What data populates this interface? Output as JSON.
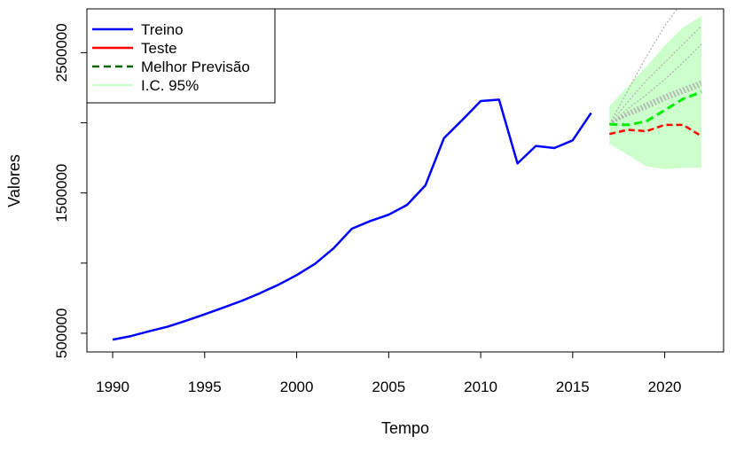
{
  "chart_data": {
    "type": "line",
    "xlabel": "Tempo",
    "ylabel": "Valores",
    "xlim": [
      1988.6,
      2023.2
    ],
    "ylim": [
      367000,
      2812000
    ],
    "x_ticks": [
      1990,
      1995,
      2000,
      2005,
      2010,
      2015,
      2020
    ],
    "x_tick_labels": [
      "1990",
      "1995",
      "2000",
      "2005",
      "2010",
      "2015",
      "2020"
    ],
    "y_ticks": [
      500000,
      1000000,
      1500000,
      2000000,
      2500000
    ],
    "y_tick_labels": [
      "500000",
      "",
      "1500000",
      "",
      "2500000"
    ],
    "legend_position": "top-left",
    "legend": [
      {
        "label": "Treino",
        "color": "#0000ff",
        "style": "solid"
      },
      {
        "label": "Teste",
        "color": "#ff0000",
        "style": "solid"
      },
      {
        "label": "Melhor Previsão",
        "color": "#006400",
        "style": "dashed"
      },
      {
        "label": "I.C. 95%",
        "color": "#ccffcc",
        "style": "solid"
      }
    ],
    "ci": {
      "color": "#ccffcc",
      "x": [
        2017,
        2018,
        2019,
        2020,
        2021,
        2022
      ],
      "upper": [
        2120000,
        2260000,
        2400000,
        2550000,
        2680000,
        2760000
      ],
      "lower": [
        1850000,
        1770000,
        1690000,
        1670000,
        1680000,
        1680000
      ]
    },
    "forecasts": {
      "color": "#b0b0b0",
      "x": [
        2017,
        2018,
        2019,
        2020,
        2021,
        2022
      ],
      "lines": [
        [
          1990000,
          2230000,
          2470000,
          2690000,
          2870000,
          3000000
        ],
        [
          1990000,
          2150000,
          2300000,
          2430000,
          2560000,
          2690000
        ],
        [
          1990000,
          2100000,
          2200000,
          2310000,
          2430000,
          2560000
        ],
        [
          1990000,
          2080000,
          2140000,
          2200000,
          2250000,
          2300000
        ],
        [
          1990000,
          2070000,
          2130000,
          2190000,
          2240000,
          2290000
        ],
        [
          1990000,
          2060000,
          2120000,
          2180000,
          2230000,
          2280000
        ],
        [
          1990000,
          2060000,
          2110000,
          2170000,
          2220000,
          2270000
        ],
        [
          1990000,
          2050000,
          2100000,
          2160000,
          2210000,
          2260000
        ]
      ]
    },
    "series": [
      {
        "name": "Treino",
        "color": "#0000ff",
        "x": [
          1990,
          1991,
          1992,
          1993,
          1994,
          1995,
          1996,
          1997,
          1998,
          1999,
          2000,
          2001,
          2002,
          2003,
          2004,
          2005,
          2006,
          2007,
          2008,
          2009,
          2010,
          2011,
          2012,
          2013,
          2014,
          2015,
          2016
        ],
        "values": [
          455000,
          480000,
          515000,
          548000,
          590000,
          635000,
          682000,
          730000,
          785000,
          845000,
          915000,
          995000,
          1105000,
          1245000,
          1300000,
          1345000,
          1415000,
          1555000,
          1890000,
          2020000,
          2155000,
          2165000,
          1710000,
          1835000,
          1820000,
          1875000,
          2070000
        ]
      },
      {
        "name": "Teste",
        "color": "#ff0000",
        "x": [
          2017,
          2018,
          2019,
          2020,
          2021,
          2022
        ],
        "values": [
          1920000,
          1950000,
          1940000,
          1985000,
          1985000,
          1905000
        ]
      },
      {
        "name": "Melhor Previsão",
        "color": "#00ee00",
        "x": [
          2017,
          2018,
          2019,
          2020,
          2021,
          2022
        ],
        "values": [
          1990000,
          1985000,
          2010000,
          2090000,
          2170000,
          2220000
        ]
      }
    ]
  }
}
